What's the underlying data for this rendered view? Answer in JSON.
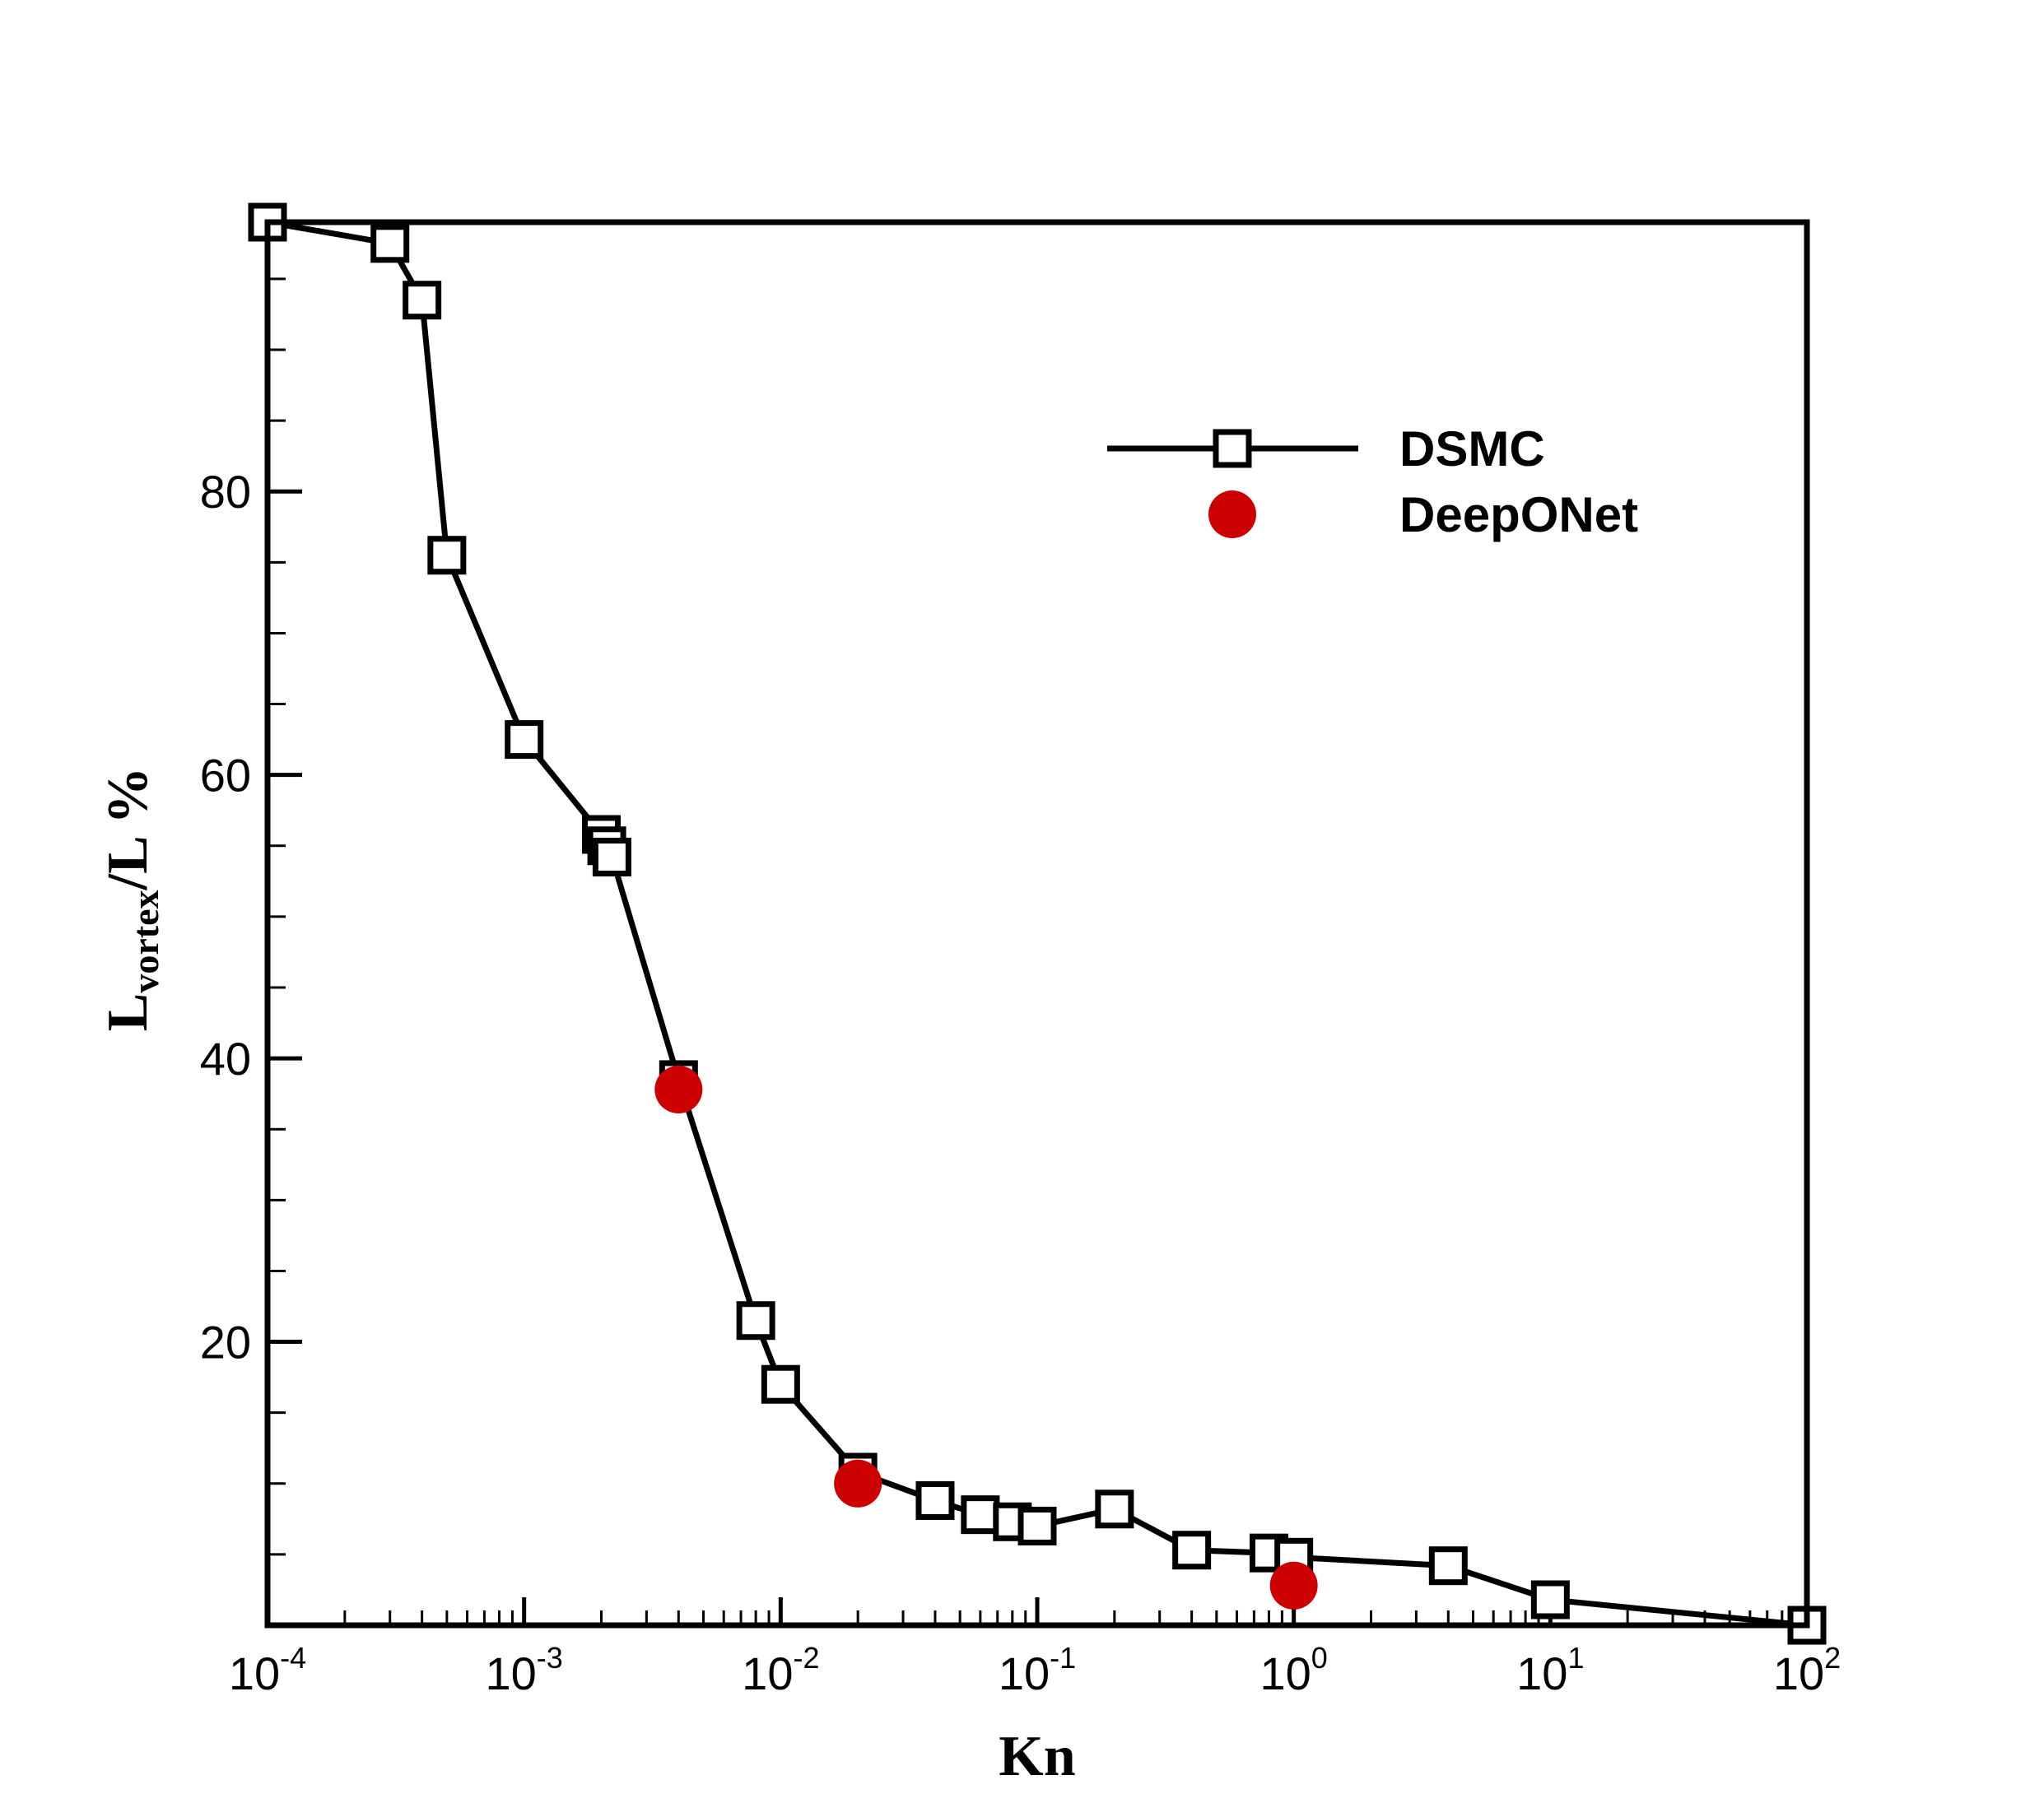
{
  "chart_data": {
    "type": "scatter",
    "x_scale": "log",
    "xlabel": "Kn",
    "ylabel": {
      "main": "L",
      "sub": "vortex",
      "rest": "/L %"
    },
    "xlim": [
      0.0001,
      100
    ],
    "ylim": [
      0,
      99
    ],
    "x_ticks": [
      {
        "value": 0.0001,
        "base": "10",
        "exp": "-4"
      },
      {
        "value": 0.001,
        "base": "10",
        "exp": "-3"
      },
      {
        "value": 0.01,
        "base": "10",
        "exp": "-2"
      },
      {
        "value": 0.1,
        "base": "10",
        "exp": "-1"
      },
      {
        "value": 1,
        "base": "10",
        "exp": "0"
      },
      {
        "value": 10,
        "base": "10",
        "exp": "1"
      },
      {
        "value": 100,
        "base": "10",
        "exp": "2"
      }
    ],
    "y_ticks": [
      20,
      40,
      60,
      80
    ],
    "grid": false,
    "legend_position": "top-right",
    "series": [
      {
        "name": "DSMC",
        "marker": "square",
        "line": true,
        "color": "#000000",
        "x": [
          0.0001,
          0.0003,
          0.0004,
          0.0005,
          0.001,
          0.002,
          0.0021,
          0.0022,
          0.004,
          0.008,
          0.01,
          0.02,
          0.04,
          0.06,
          0.08,
          0.1,
          0.2,
          0.4,
          0.8,
          1,
          4,
          10,
          100
        ],
        "y": [
          99,
          97.5,
          93.5,
          75.5,
          62.5,
          55.8,
          55,
          54.2,
          38.5,
          21.5,
          17,
          10.8,
          8.8,
          7.8,
          7.3,
          7,
          8.2,
          5.3,
          5.1,
          4.8,
          4.2,
          1.8,
          0
        ]
      },
      {
        "name": "DeepONet",
        "marker": "circle",
        "line": false,
        "color": "#cc0000",
        "x": [
          0.004,
          0.02,
          1
        ],
        "y": [
          37.8,
          10,
          2.8
        ]
      }
    ]
  }
}
